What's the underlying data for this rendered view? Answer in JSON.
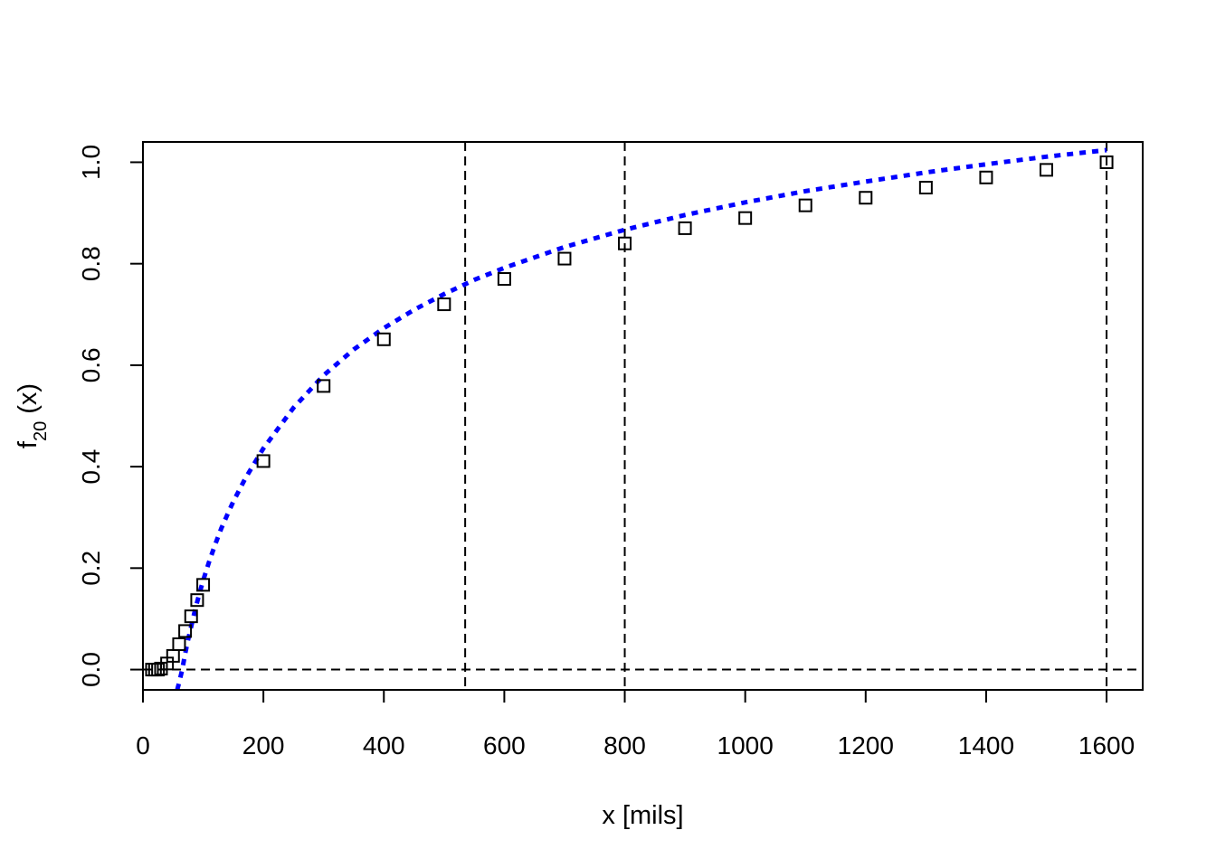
{
  "chart_data": {
    "type": "scatter",
    "title": "",
    "xlabel": "x [mils]",
    "ylabel": {
      "base": "f",
      "subscript": "20",
      "suffix": " (x)"
    },
    "xlim": [
      0,
      1660
    ],
    "ylim": [
      -0.04,
      1.04
    ],
    "x_ticks": [
      0,
      200,
      400,
      600,
      800,
      1000,
      1200,
      1400,
      1600
    ],
    "y_ticks": [
      0.0,
      0.2,
      0.4,
      0.6,
      0.8,
      1.0
    ],
    "x_tick_labels": [
      "0",
      "200",
      "400",
      "600",
      "800",
      "1000",
      "1200",
      "1400",
      "1600"
    ],
    "y_tick_labels": [
      "0.0",
      "0.2",
      "0.4",
      "0.6",
      "0.8",
      "1.0"
    ],
    "grid": false,
    "reference_lines": {
      "vertical": [
        0,
        535,
        800,
        1600
      ],
      "horizontal": [
        0
      ]
    },
    "series": [
      {
        "kind": "points",
        "marker": "open-square",
        "color": "#000000",
        "x": [
          15,
          20,
          25,
          30,
          40,
          50,
          60,
          70,
          80,
          90,
          100,
          200,
          300,
          400,
          500,
          600,
          700,
          800,
          900,
          1000,
          1100,
          1200,
          1300,
          1400,
          1500,
          1600
        ],
        "y": [
          0.0,
          0.0,
          0.0,
          0.002,
          0.012,
          0.027,
          0.05,
          0.076,
          0.105,
          0.137,
          0.167,
          0.411,
          0.559,
          0.651,
          0.72,
          0.77,
          0.81,
          0.84,
          0.87,
          0.89,
          0.915,
          0.93,
          0.95,
          0.97,
          0.985,
          1.0
        ]
      },
      {
        "kind": "fitted-curve",
        "style": "dotted",
        "color": "#0000ff",
        "x": [
          57,
          60,
          65,
          70,
          75,
          80,
          85,
          90,
          95,
          100,
          110,
          120,
          130,
          140,
          150,
          170,
          200,
          250,
          300,
          350,
          400,
          450,
          500,
          550,
          600,
          700,
          800,
          900,
          1000,
          1100,
          1200,
          1300,
          1400,
          1500,
          1600
        ],
        "y": [
          -0.04,
          -0.026,
          -0.001,
          0.031,
          0.059,
          0.085,
          0.11,
          0.133,
          0.155,
          0.176,
          0.213,
          0.247,
          0.278,
          0.305,
          0.331,
          0.377,
          0.436,
          0.516,
          0.58,
          0.631,
          0.673,
          0.709,
          0.74,
          0.768,
          0.792,
          0.833,
          0.867,
          0.896,
          0.921,
          0.943,
          0.962,
          0.98,
          0.996,
          1.011,
          1.024
        ]
      }
    ]
  }
}
